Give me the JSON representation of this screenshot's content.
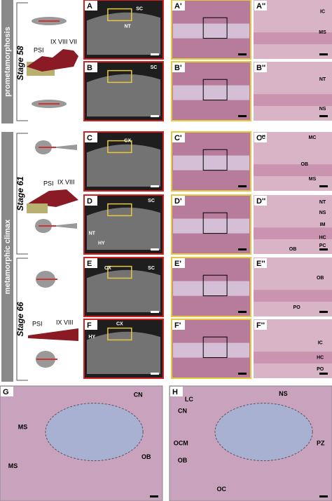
{
  "phases": [
    "prometamorphosis",
    "metamorphic climax"
  ],
  "stages": [
    "Stage 58",
    "Stage 61",
    "Stage 66"
  ],
  "skeleton_labels": [
    [
      "PSI",
      "IX VIII VII"
    ],
    [
      "PSI",
      "IX VIII"
    ],
    [
      "PSI",
      "IX VIII"
    ]
  ],
  "panels": [
    {
      "label": "A",
      "annotations": [
        "NT",
        "SC"
      ]
    },
    {
      "label": "A'"
    },
    {
      "label": "A''",
      "annotations": [
        "IC",
        "MS"
      ]
    },
    {
      "label": "B",
      "annotations": [
        "SC"
      ]
    },
    {
      "label": "B'"
    },
    {
      "label": "B''",
      "annotations": [
        "NT",
        "NS"
      ]
    },
    {
      "label": "C",
      "annotations": [
        "CX"
      ]
    },
    {
      "label": "C'"
    },
    {
      "label": "C''",
      "annotations": [
        "IC",
        "MC",
        "OB",
        "MS"
      ]
    },
    {
      "label": "D",
      "annotations": [
        "SC",
        "NT",
        "HY"
      ]
    },
    {
      "label": "D'"
    },
    {
      "label": "D''",
      "annotations": [
        "NT",
        "NS",
        "IM",
        "HC",
        "PC",
        "OB"
      ]
    },
    {
      "label": "E",
      "annotations": [
        "CX",
        "SC"
      ]
    },
    {
      "label": "E'"
    },
    {
      "label": "E''",
      "annotations": [
        "OB",
        "PO"
      ]
    },
    {
      "label": "F",
      "annotations": [
        "CX",
        "HY"
      ]
    },
    {
      "label": "F'"
    },
    {
      "label": "F''",
      "annotations": [
        "IC",
        "HC",
        "PO"
      ]
    },
    {
      "label": "G",
      "annotations": [
        "CN",
        "MS",
        "OB",
        "MS"
      ]
    },
    {
      "label": "H",
      "annotations": [
        "LC",
        "NS",
        "CN",
        "PZ",
        "OCM",
        "OB",
        "OC"
      ]
    }
  ]
}
